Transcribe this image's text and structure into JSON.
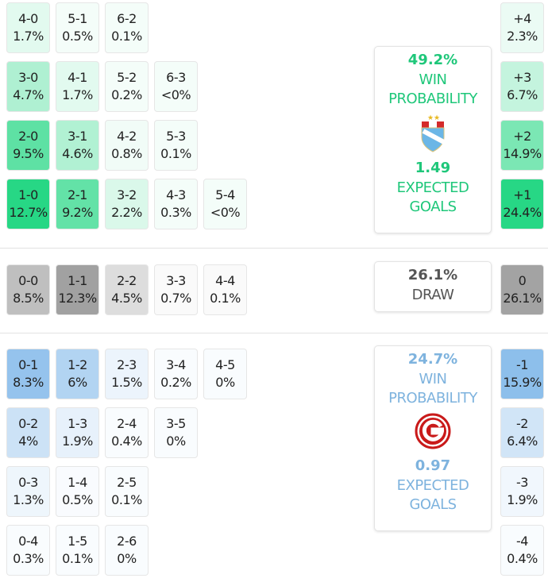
{
  "home": {
    "win_probability": "49.2%",
    "win_label": "WIN",
    "probability_label": "PROBABILITY",
    "expected_goals": "1.49",
    "expected_label": "EXPECTED",
    "goals_label": "GOALS",
    "crest": "adt-crest-icon",
    "color": "#22d682"
  },
  "draw": {
    "probability": "26.1%",
    "label": "DRAW",
    "color": "#a0a0a0"
  },
  "away": {
    "win_probability": "24.7%",
    "win_label": "WIN",
    "probability_label": "PROBABILITY",
    "expected_goals": "0.97",
    "expected_label": "EXPECTED",
    "goals_label": "GOALS",
    "crest": "deportivo-municipal-g-icon",
    "color": "#8cbeeb"
  },
  "home_rows": [
    [
      [
        "4-0",
        "1.7%"
      ],
      [
        "5-1",
        "0.5%"
      ],
      [
        "6-2",
        "0.1%"
      ]
    ],
    [
      [
        "3-0",
        "4.7%"
      ],
      [
        "4-1",
        "1.7%"
      ],
      [
        "5-2",
        "0.2%"
      ],
      [
        "6-3",
        "<0%"
      ]
    ],
    [
      [
        "2-0",
        "9.5%"
      ],
      [
        "3-1",
        "4.6%"
      ],
      [
        "4-2",
        "0.8%"
      ],
      [
        "5-3",
        "0.1%"
      ]
    ],
    [
      [
        "1-0",
        "12.7%"
      ],
      [
        "2-1",
        "9.2%"
      ],
      [
        "3-2",
        "2.2%"
      ],
      [
        "4-3",
        "0.3%"
      ],
      [
        "5-4",
        "<0%"
      ]
    ]
  ],
  "draw_row": [
    [
      "0-0",
      "8.5%"
    ],
    [
      "1-1",
      "12.3%"
    ],
    [
      "2-2",
      "4.5%"
    ],
    [
      "3-3",
      "0.7%"
    ],
    [
      "4-4",
      "0.1%"
    ]
  ],
  "away_rows": [
    [
      [
        "0-1",
        "8.3%"
      ],
      [
        "1-2",
        "6%"
      ],
      [
        "2-3",
        "1.5%"
      ],
      [
        "3-4",
        "0.2%"
      ],
      [
        "4-5",
        "0%"
      ]
    ],
    [
      [
        "0-2",
        "4%"
      ],
      [
        "1-3",
        "1.9%"
      ],
      [
        "2-4",
        "0.4%"
      ],
      [
        "3-5",
        "0%"
      ]
    ],
    [
      [
        "0-3",
        "1.3%"
      ],
      [
        "1-4",
        "0.5%"
      ],
      [
        "2-5",
        "0.1%"
      ]
    ],
    [
      [
        "0-4",
        "0.3%"
      ],
      [
        "1-5",
        "0.1%"
      ],
      [
        "2-6",
        "0%"
      ]
    ]
  ],
  "margins_home": [
    [
      "+4",
      "2.3%"
    ],
    [
      "+3",
      "6.7%"
    ],
    [
      "+2",
      "14.9%"
    ],
    [
      "+1",
      "24.4%"
    ]
  ],
  "margin_draw": [
    "0",
    "26.1%"
  ],
  "margins_away": [
    [
      "-1",
      "15.9%"
    ],
    [
      "-2",
      "6.4%"
    ],
    [
      "-3",
      "1.9%"
    ],
    [
      "-4",
      "0.4%"
    ]
  ]
}
